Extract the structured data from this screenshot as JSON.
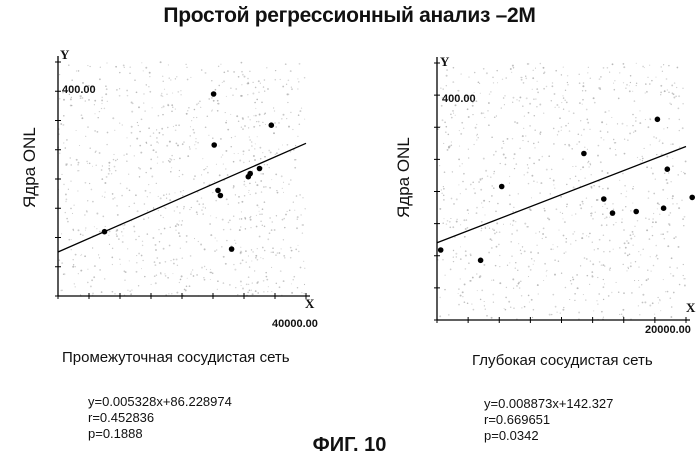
{
  "title": "Простой регрессионный анализ –2М",
  "figure_label": "ФИГ. 10",
  "chart_data": [
    {
      "type": "scatter",
      "axis_y_name": "Y",
      "axis_x_name": "X",
      "ylabel": "Ядра ONL",
      "ymax_label": "400.00",
      "xmax_label": "40000.00",
      "caption": "Промежуточная сосудистая сеть",
      "xlim": [
        0,
        40000
      ],
      "ylim": [
        0,
        480
      ],
      "points": [
        {
          "x": 7500,
          "y": 126
        },
        {
          "x": 25100,
          "y": 396
        },
        {
          "x": 25200,
          "y": 296
        },
        {
          "x": 25800,
          "y": 207
        },
        {
          "x": 26200,
          "y": 197
        },
        {
          "x": 28000,
          "y": 92
        },
        {
          "x": 30700,
          "y": 234
        },
        {
          "x": 31000,
          "y": 240
        },
        {
          "x": 32500,
          "y": 250
        },
        {
          "x": 34400,
          "y": 335
        }
      ],
      "fit": {
        "slope": 0.005328,
        "intercept": 86.228974
      },
      "stats": [
        "y=0.005328x+86.228974",
        "r=0.452836",
        "p=0.1888"
      ]
    },
    {
      "type": "scatter",
      "axis_y_name": "Y",
      "axis_x_name": "X",
      "ylabel": "Ядра ONL",
      "ymax_label": "400.00",
      "xmax_label": "20000.00",
      "caption": "Глубокая сосудистая сеть",
      "xlim": [
        0,
        20000
      ],
      "ylim": [
        0,
        480
      ],
      "points": [
        {
          "x": 300,
          "y": 129
        },
        {
          "x": 3500,
          "y": 110
        },
        {
          "x": 5200,
          "y": 246
        },
        {
          "x": 18200,
          "y": 206
        },
        {
          "x": 11800,
          "y": 307
        },
        {
          "x": 13400,
          "y": 223
        },
        {
          "x": 14100,
          "y": 197
        },
        {
          "x": 16000,
          "y": 200
        },
        {
          "x": 17700,
          "y": 370
        },
        {
          "x": 18500,
          "y": 278
        },
        {
          "x": 20500,
          "y": 226
        }
      ],
      "fit": {
        "slope": 0.008873,
        "intercept": 142.327
      },
      "stats": [
        "y=0.008873x+142.327",
        "r=0.669651",
        "p=0.0342"
      ]
    }
  ]
}
